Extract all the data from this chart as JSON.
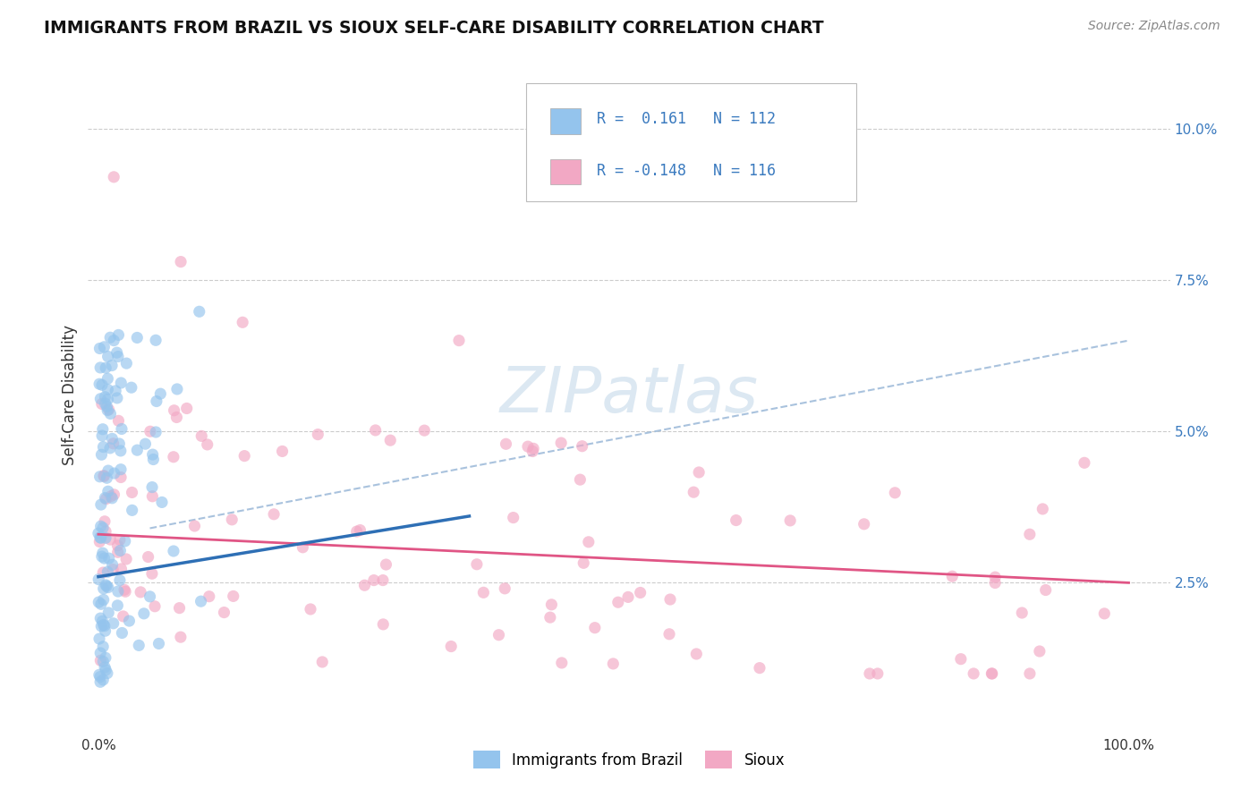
{
  "title": "IMMIGRANTS FROM BRAZIL VS SIOUX SELF-CARE DISABILITY CORRELATION CHART",
  "source_text": "Source: ZipAtlas.com",
  "ylabel": "Self-Care Disability",
  "color_brazil": "#94c4ed",
  "color_sioux": "#f2a8c4",
  "color_brazil_line": "#2e6fb5",
  "color_sioux_line": "#e05585",
  "color_dashed": "#9ab8d8",
  "background_color": "#ffffff",
  "grid_color": "#cccccc",
  "watermark_color": "#dce8f2",
  "brazil_line_x0": 0.0,
  "brazil_line_x1": 0.36,
  "brazil_line_y0": 0.026,
  "brazil_line_y1": 0.036,
  "sioux_line_x0": 0.0,
  "sioux_line_x1": 1.0,
  "sioux_line_y0": 0.033,
  "sioux_line_y1": 0.025,
  "dash_line_x0": 0.05,
  "dash_line_x1": 1.0,
  "dash_line_y0": 0.034,
  "dash_line_y1": 0.065,
  "ytick_vals": [
    0.025,
    0.05,
    0.075,
    0.1
  ],
  "ytick_labels": [
    "2.5%",
    "5.0%",
    "7.5%",
    "10.0%"
  ],
  "xtick_vals": [
    0.0,
    1.0
  ],
  "xtick_labels": [
    "0.0%",
    "100.0%"
  ],
  "xlim": [
    -0.01,
    1.04
  ],
  "ylim": [
    0.0,
    0.112
  ]
}
